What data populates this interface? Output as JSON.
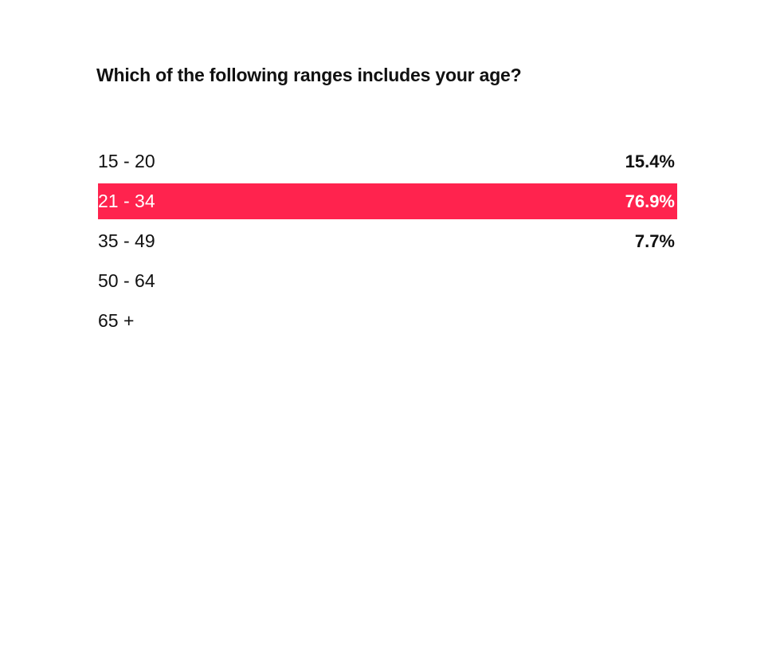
{
  "poll": {
    "question": "Which of the following ranges includes your age?",
    "accent_color": "#ff234e",
    "options": [
      {
        "label": "15 - 20",
        "percent": "15.4%",
        "selected": false
      },
      {
        "label": "21 - 34",
        "percent": "76.9%",
        "selected": true
      },
      {
        "label": "35 - 49",
        "percent": "7.7%",
        "selected": false
      },
      {
        "label": "50 - 64",
        "percent": "",
        "selected": false
      },
      {
        "label": "65 +",
        "percent": "",
        "selected": false
      }
    ]
  }
}
